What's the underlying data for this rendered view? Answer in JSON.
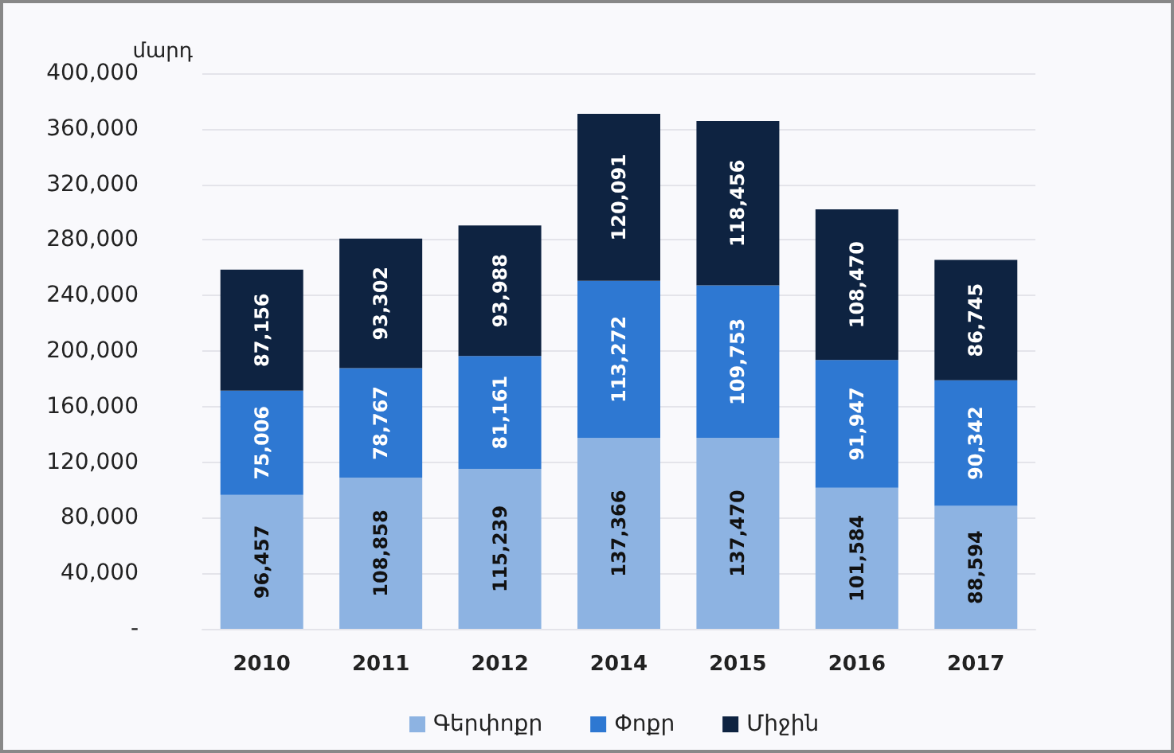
{
  "chart_data": {
    "type": "bar",
    "stacked": true,
    "ylabel": "մարդ",
    "categories": [
      "2010",
      "2011",
      "2012",
      "2014",
      "2015",
      "2016",
      "2017"
    ],
    "series": [
      {
        "name": "Գերփոքր",
        "color": "#8db3e2",
        "values": [
          96457,
          108858,
          115239,
          137366,
          137470,
          101584,
          88594
        ],
        "value_labels": [
          "96,457",
          "108,858",
          "115,239",
          "137,366",
          "137,470",
          "101,584",
          "88,594"
        ]
      },
      {
        "name": "Փոքր",
        "color": "#2e78d2",
        "values": [
          75006,
          78767,
          81161,
          113272,
          109753,
          91947,
          90342
        ],
        "value_labels": [
          "75,006",
          "78,767",
          "81,161",
          "113,272",
          "109,753",
          "91,947",
          "90,342"
        ]
      },
      {
        "name": "Միջին",
        "color": "#0e2341",
        "values": [
          87156,
          93302,
          93988,
          120091,
          118456,
          108470,
          86745
        ],
        "value_labels": [
          "87,156",
          "93,302",
          "93,988",
          "120,091",
          "118,456",
          "108,470",
          "86,745"
        ]
      }
    ],
    "ylim": [
      0,
      400000
    ],
    "yticks": [
      {
        "value": 0,
        "label": "-"
      },
      {
        "value": 40000,
        "label": "40,000"
      },
      {
        "value": 80000,
        "label": "80,000"
      },
      {
        "value": 120000,
        "label": "120,000"
      },
      {
        "value": 160000,
        "label": "160,000"
      },
      {
        "value": 200000,
        "label": "200,000"
      },
      {
        "value": 240000,
        "label": "240,000"
      },
      {
        "value": 280000,
        "label": "280,000"
      },
      {
        "value": 320000,
        "label": "320,000"
      },
      {
        "value": 360000,
        "label": "360,000"
      },
      {
        "value": 400000,
        "label": "400,000"
      }
    ],
    "grid": "y",
    "legend": "bottom"
  }
}
